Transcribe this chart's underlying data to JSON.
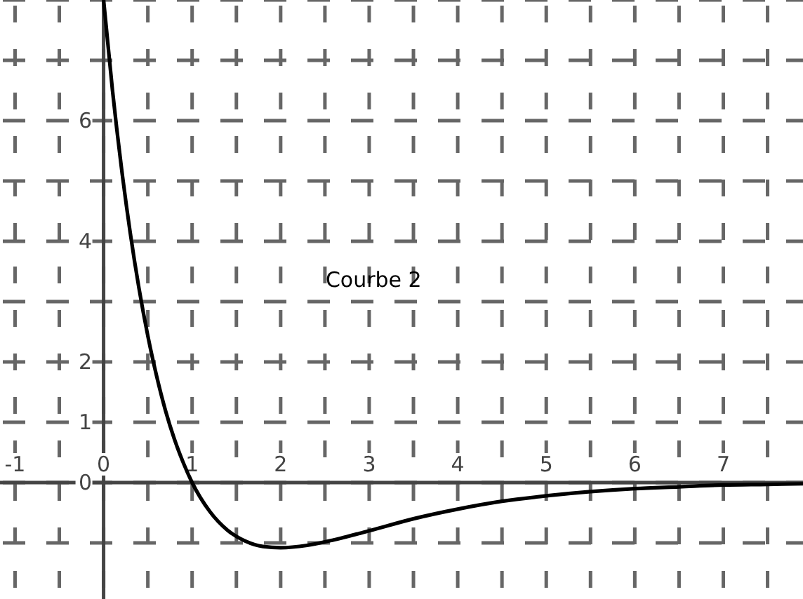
{
  "chart_data": {
    "type": "line",
    "xlim": [
      -1.17,
      7.9
    ],
    "ylim": [
      -1.93,
      8
    ],
    "xticks": [
      -1,
      0,
      1,
      2,
      3,
      4,
      5,
      6,
      7
    ],
    "yticks": [
      {
        "value": -1,
        "label": null
      },
      0,
      1,
      2,
      {
        "value": 3,
        "label": null
      },
      4,
      {
        "value": 5,
        "label": null
      },
      6,
      {
        "value": 7,
        "label": null
      },
      {
        "value": 8,
        "label": null
      }
    ],
    "grid": true,
    "line_style": "solid",
    "marker": "none",
    "series": [
      {
        "name": "Courbe 2",
        "color": "#000000",
        "x": [
          0,
          0.1,
          0.2,
          0.3,
          0.4,
          0.5,
          0.6,
          0.7,
          0.8,
          0.9,
          1,
          1.2,
          1.4,
          1.6,
          1.8,
          2,
          2.3,
          2.6,
          3,
          3.5,
          4,
          4.5,
          5,
          5.5,
          6,
          6.5,
          7,
          7.5,
          7.9
        ],
        "values": [
          8,
          6.51,
          5.24,
          4.15,
          3.22,
          2.43,
          1.76,
          1.19,
          0.72,
          0.33,
          0,
          -0.48,
          -0.79,
          -0.97,
          -1.06,
          -1.08,
          -1.04,
          -0.95,
          -0.8,
          -0.6,
          -0.44,
          -0.31,
          -0.22,
          -0.15,
          -0.1,
          -0.07,
          -0.04,
          -0.03,
          -0.02
        ]
      }
    ]
  }
}
